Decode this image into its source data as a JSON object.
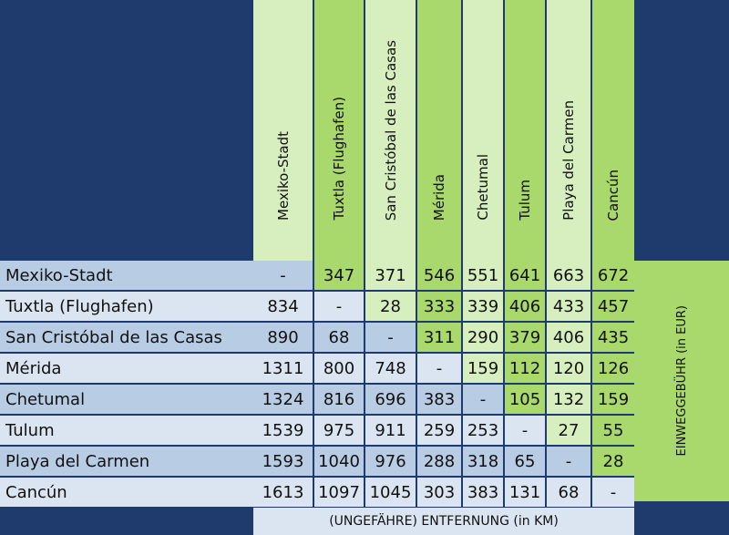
{
  "columns": [
    "Mexiko-Stadt",
    "Tuxtla (Flughafen)",
    "San Cristóbal de las Casas",
    "Mérida",
    "Chetumal",
    "Tulum",
    "Playa del Carmen",
    "Cancún"
  ],
  "rows": [
    {
      "label": "Mexiko-Stadt",
      "cells": [
        "-",
        "347",
        "371",
        "546",
        "551",
        "641",
        "663",
        "672"
      ]
    },
    {
      "label": "Tuxtla (Flughafen)",
      "cells": [
        "834",
        "-",
        "28",
        "333",
        "339",
        "406",
        "433",
        "457"
      ]
    },
    {
      "label": "San Cristóbal de las Casas",
      "cells": [
        "890",
        "68",
        "-",
        "311",
        "290",
        "379",
        "406",
        "435"
      ]
    },
    {
      "label": "Mérida",
      "cells": [
        "1311",
        "800",
        "748",
        "-",
        "159",
        "112",
        "120",
        "126"
      ]
    },
    {
      "label": "Chetumal",
      "cells": [
        "1324",
        "816",
        "696",
        "383",
        "-",
        "105",
        "132",
        "159"
      ]
    },
    {
      "label": "Tulum",
      "cells": [
        "1539",
        "975",
        "911",
        "259",
        "253",
        "-",
        "27",
        "55"
      ]
    },
    {
      "label": "Playa del Carmen",
      "cells": [
        "1593",
        "1040",
        "976",
        "288",
        "318",
        "65",
        "-",
        "28"
      ]
    },
    {
      "label": "Cancún",
      "cells": [
        "1613",
        "1097",
        "1045",
        "303",
        "383",
        "131",
        "68",
        "-"
      ]
    }
  ],
  "side_label": "EINWEGGEBÜHR (in EUR)",
  "footer_label": "(UNGEFÄHRE) ENTFERNUNG (in KM)"
}
